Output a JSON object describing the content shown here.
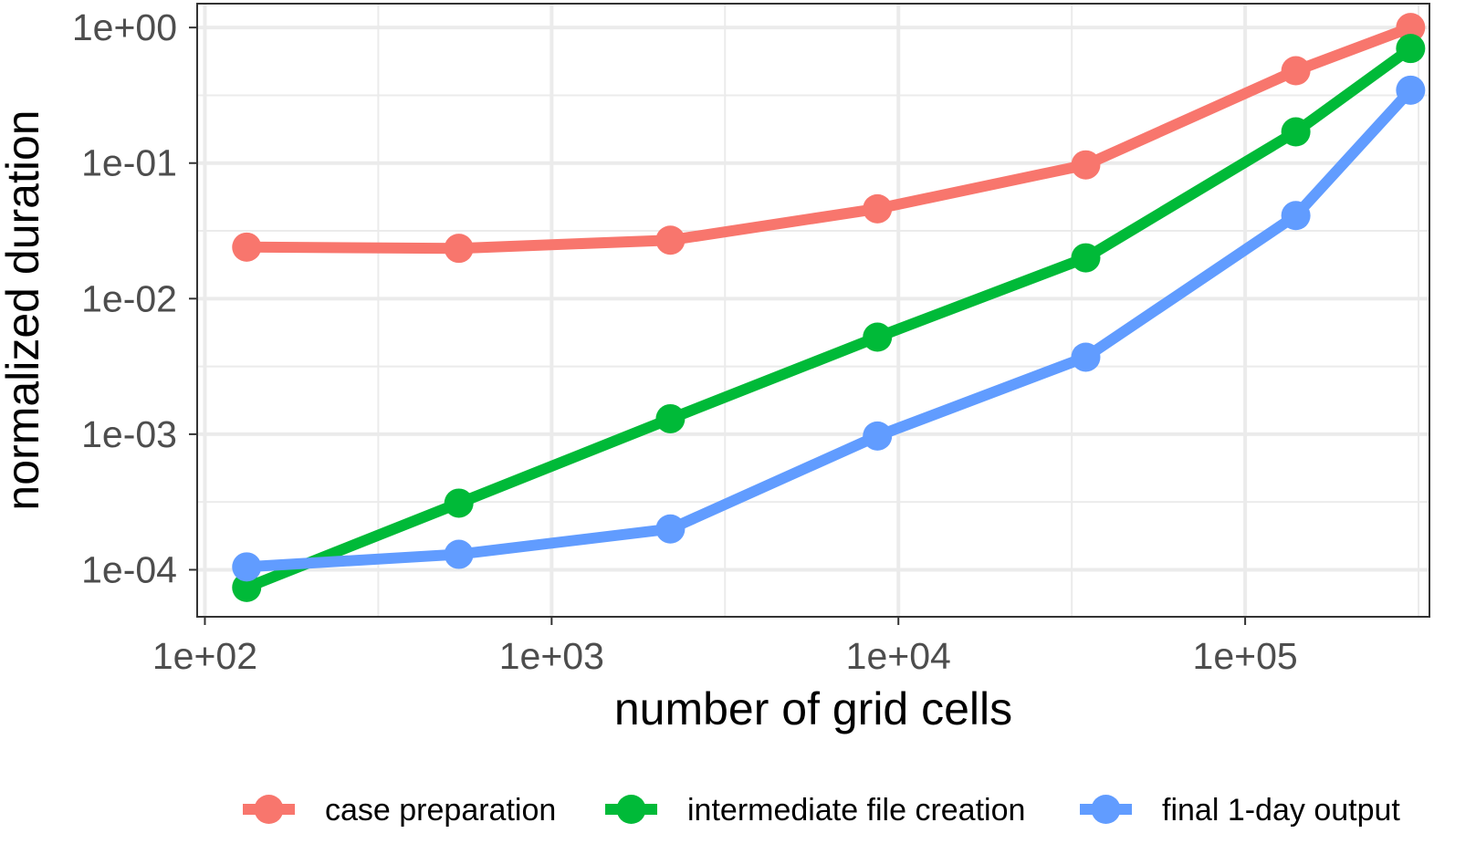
{
  "chart_data": {
    "type": "line",
    "title": "",
    "xlabel": "number of grid cells",
    "ylabel": "normalized duration",
    "x_scale": "log",
    "y_scale": "log",
    "xlim": [
      95,
      340000
    ],
    "ylim": [
      4.5e-05,
      1.5
    ],
    "x_ticks": [
      {
        "value": 100,
        "label": "1e+02"
      },
      {
        "value": 1000,
        "label": "1e+03"
      },
      {
        "value": 10000,
        "label": "1e+04"
      },
      {
        "value": 100000,
        "label": "1e+05"
      }
    ],
    "y_ticks": [
      {
        "value": 1,
        "label": "1e+00"
      },
      {
        "value": 0.1,
        "label": "1e-01"
      },
      {
        "value": 0.01,
        "label": "1e-02"
      },
      {
        "value": 0.001,
        "label": "1e-03"
      },
      {
        "value": 0.0001,
        "label": "1e-04"
      }
    ],
    "grid": true,
    "legend_position": "bottom",
    "x": [
      132,
      540,
      2200,
      8700,
      34700,
      140000,
      300000
    ],
    "series": [
      {
        "name": "case preparation",
        "color": "#F8766D",
        "values": [
          0.024,
          0.0235,
          0.027,
          0.046,
          0.097,
          0.48,
          1.0
        ]
      },
      {
        "name": "intermediate file creation",
        "color": "#00BA38",
        "values": [
          7.4e-05,
          0.00031,
          0.0013,
          0.0052,
          0.02,
          0.17,
          0.7
        ]
      },
      {
        "name": "final 1-day output",
        "color": "#619CFF",
        "values": [
          0.000105,
          0.00013,
          0.0002,
          0.00097,
          0.0037,
          0.041,
          0.345
        ]
      }
    ]
  }
}
